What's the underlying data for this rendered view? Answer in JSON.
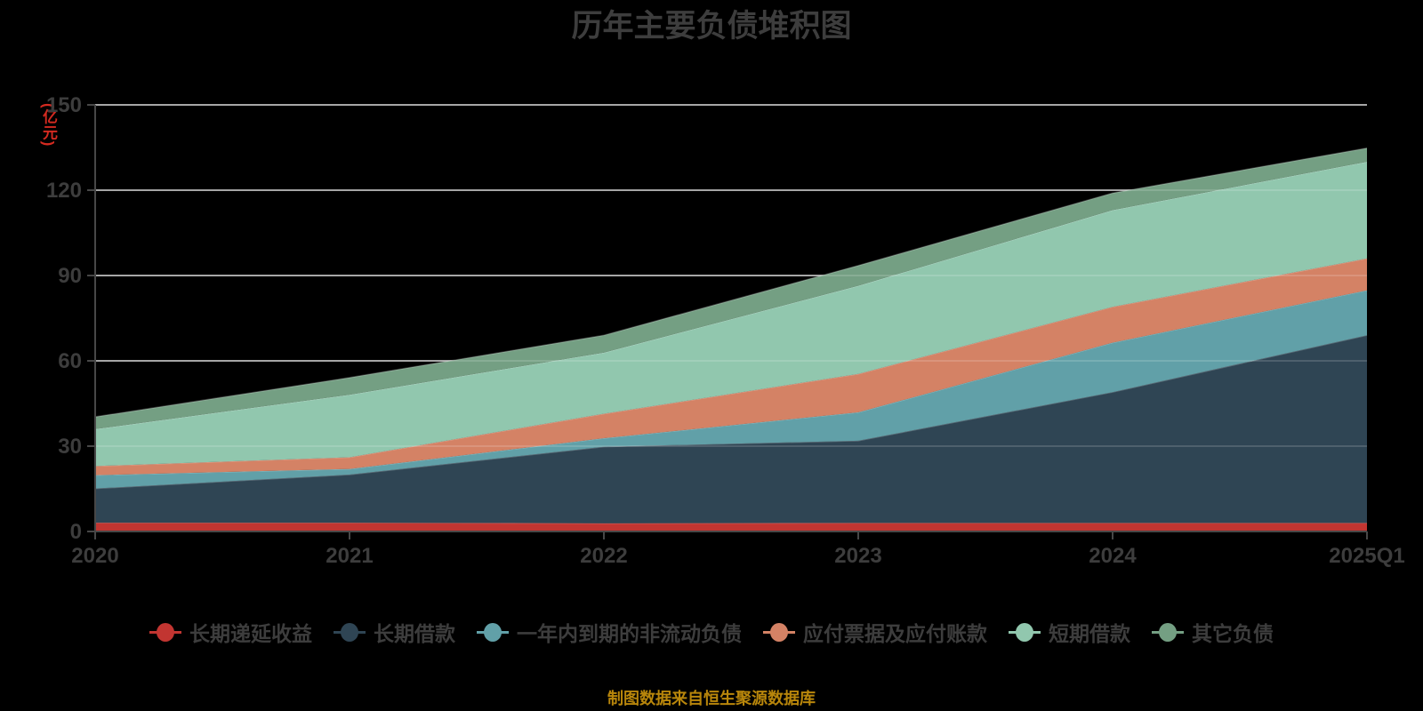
{
  "title": "历年主要负债堆积图",
  "y_axis": {
    "unit": "(亿元)",
    "ticks": [
      0,
      30,
      60,
      90,
      120,
      150
    ],
    "min": 0,
    "max": 150
  },
  "x_axis": {
    "labels": [
      "2020",
      "2021",
      "2022",
      "2023",
      "2024",
      "2025Q1"
    ]
  },
  "footer": "制图数据来自恒生聚源数据库",
  "colors": {
    "background": "#000000",
    "title_text": "#3d3d3d",
    "axis_line": "#474747",
    "axis_text": "#3d3d3d",
    "gridline": "#cccccc",
    "gridline_overlay": "rgba(255,255,255,0.20)",
    "unit_text": "#d42a20",
    "footer_text": "#b8860b"
  },
  "chart_data": {
    "type": "area",
    "stacked": true,
    "title": "历年主要负债堆积图",
    "ylabel": "(亿元)",
    "ylim": [
      0,
      150
    ],
    "grid": true,
    "legend_position": "bottom",
    "categories": [
      "2020",
      "2021",
      "2022",
      "2023",
      "2024",
      "2025Q1"
    ],
    "series": [
      {
        "name": "长期递延收益",
        "color": "#c23531",
        "values": [
          3.1,
          3.1,
          2.9,
          3.0,
          3.0,
          3.0
        ]
      },
      {
        "name": "长期借款",
        "color": "#2f4554",
        "values": [
          12.0,
          16.9,
          26.9,
          28.9,
          46.0,
          66.0
        ]
      },
      {
        "name": "一年内到期的非流动负债",
        "color": "#61a0a8",
        "values": [
          4.7,
          2.0,
          3.0,
          10.0,
          17.4,
          15.8
        ]
      },
      {
        "name": "应付票据及应付账款",
        "color": "#d48265",
        "values": [
          3.2,
          4.1,
          8.6,
          13.5,
          12.6,
          11.2
        ]
      },
      {
        "name": "短期借款",
        "color": "#91c7ae",
        "values": [
          13.0,
          22.0,
          21.5,
          31.0,
          34.0,
          34.0
        ]
      },
      {
        "name": "其它负债",
        "color": "#749f83",
        "values": [
          4.3,
          6.0,
          6.1,
          7.1,
          6.0,
          4.8
        ]
      }
    ]
  }
}
